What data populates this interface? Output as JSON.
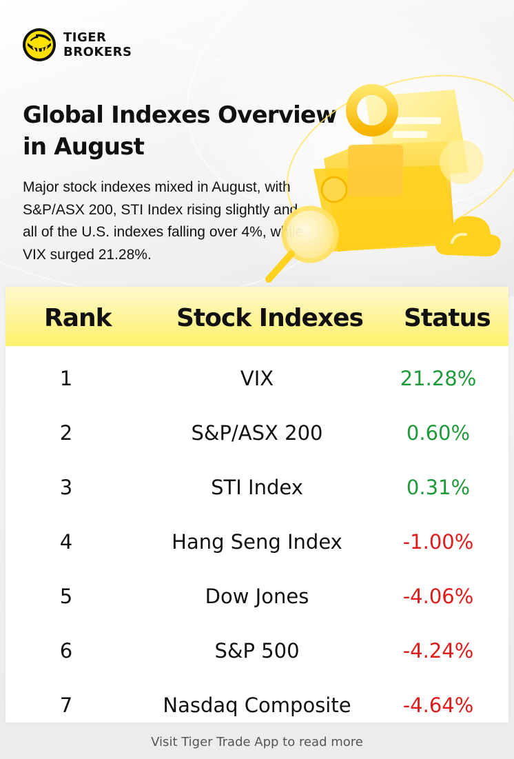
{
  "brand": {
    "name_line1": "TIGER",
    "name_line2": "BROKERS",
    "accent_color": "#FFE100"
  },
  "headline": {
    "title_line1": "Global Indexes Overview",
    "title_line2": "in August",
    "description": "Major stock indexes mixed in August, with S&P/ASX 200, STI Index rising slightly and all of the U.S. indexes falling over 4%, while VIX surged 21.28%."
  },
  "table": {
    "headers": [
      "Rank",
      "Stock Indexes",
      "Status"
    ],
    "rows": [
      {
        "rank": "1",
        "index": "VIX",
        "status": "21.28%",
        "direction": "up"
      },
      {
        "rank": "2",
        "index": "S&P/ASX 200",
        "status": "0.60%",
        "direction": "up"
      },
      {
        "rank": "3",
        "index": "STI Index",
        "status": "0.31%",
        "direction": "up"
      },
      {
        "rank": "4",
        "index": "Hang Seng Index",
        "status": "-1.00%",
        "direction": "down"
      },
      {
        "rank": "5",
        "index": "Dow Jones",
        "status": "-4.06%",
        "direction": "down"
      },
      {
        "rank": "6",
        "index": "S&P 500",
        "status": "-4.24%",
        "direction": "down"
      },
      {
        "rank": "7",
        "index": "Nasdaq Composite",
        "status": "-4.64%",
        "direction": "down"
      }
    ],
    "colors": {
      "up": "#1F9A3A",
      "down": "#E01B1B",
      "header_bg": "#FFF06A"
    }
  },
  "footer": {
    "cta": "Visit Tiger Trade App to read more"
  },
  "icons": [
    "tiger-logo-icon",
    "folder-illustration-icon",
    "magnifier-icon",
    "cloud-icon",
    "ring-icon"
  ]
}
